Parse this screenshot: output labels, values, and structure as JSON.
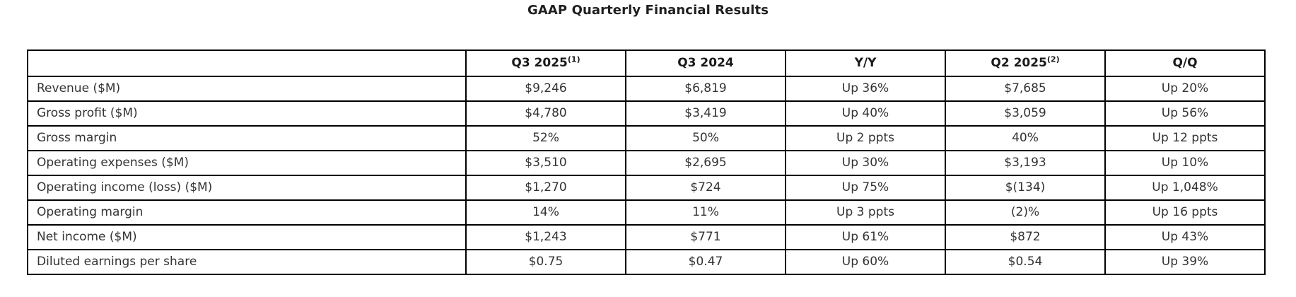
{
  "title": "GAAP Quarterly Financial Results",
  "table": {
    "columns": [
      {
        "label": "",
        "sup": ""
      },
      {
        "label": "Q3 2025",
        "sup": "(1)"
      },
      {
        "label": "Q3 2024",
        "sup": ""
      },
      {
        "label": "Y/Y",
        "sup": ""
      },
      {
        "label": "Q2 2025",
        "sup": "(2)"
      },
      {
        "label": "Q/Q",
        "sup": ""
      }
    ],
    "rows": [
      {
        "label": "Revenue ($M)",
        "values": [
          "$9,246",
          "$6,819",
          "Up 36%",
          "$7,685",
          "Up 20%"
        ]
      },
      {
        "label": "Gross profit ($M)",
        "values": [
          "$4,780",
          "$3,419",
          "Up 40%",
          "$3,059",
          "Up 56%"
        ]
      },
      {
        "label": "Gross margin",
        "values": [
          "52%",
          "50%",
          "Up 2 ppts",
          "40%",
          "Up 12 ppts"
        ]
      },
      {
        "label": "Operating expenses ($M)",
        "values": [
          "$3,510",
          "$2,695",
          "Up 30%",
          "$3,193",
          "Up 10%"
        ]
      },
      {
        "label": "Operating income (loss) ($M)",
        "values": [
          "$1,270",
          "$724",
          "Up 75%",
          "$(134)",
          "Up 1,048%"
        ]
      },
      {
        "label": "Operating margin",
        "values": [
          "14%",
          "11%",
          "Up 3 ppts",
          "(2)%",
          "Up 16 ppts"
        ]
      },
      {
        "label": "Net income ($M)",
        "values": [
          "$1,243",
          "$771",
          "Up 61%",
          "$872",
          "Up 43%"
        ]
      },
      {
        "label": "Diluted earnings per share",
        "values": [
          "$0.75",
          "$0.47",
          "Up 60%",
          "$0.54",
          "Up 39%"
        ]
      }
    ]
  }
}
